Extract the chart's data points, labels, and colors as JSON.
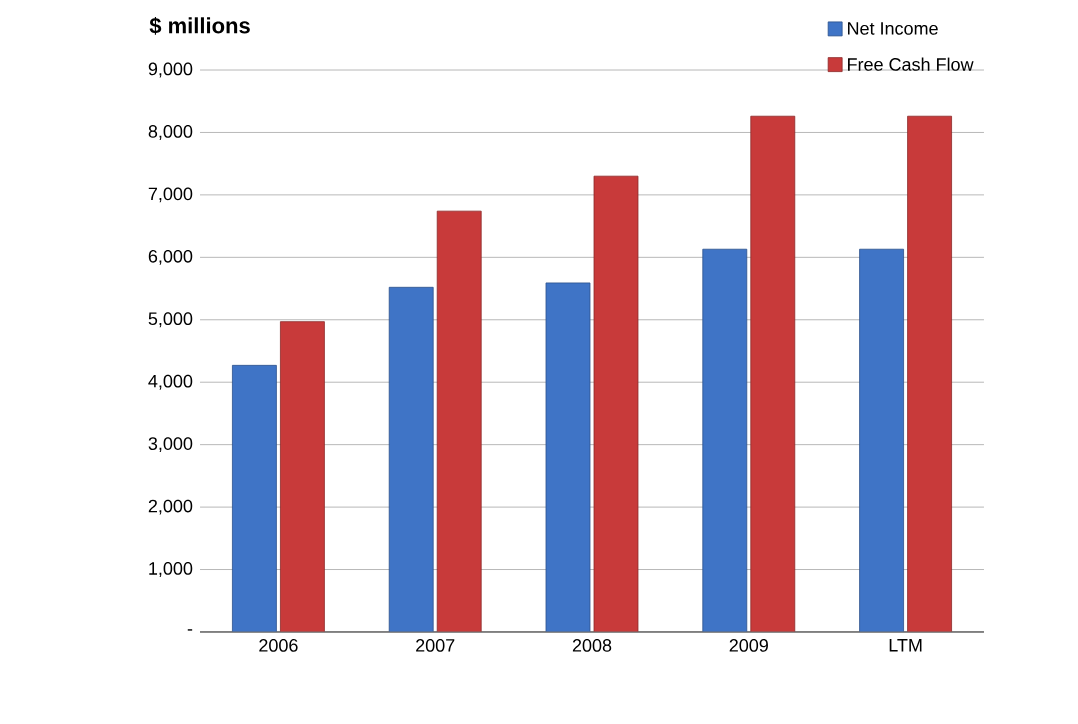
{
  "chart_data": {
    "type": "bar",
    "ylabel": "$ millions",
    "categories": [
      "2006",
      "2007",
      "2008",
      "2009",
      "LTM"
    ],
    "series": [
      {
        "name": "Net Income",
        "color": "#3f74c6",
        "values": [
          4270,
          5520,
          5590,
          6130,
          6130
        ]
      },
      {
        "name": "Free Cash Flow",
        "color": "#c83a3a",
        "values": [
          4970,
          6740,
          7300,
          8260,
          8260
        ]
      }
    ],
    "ylim": [
      0,
      9000
    ],
    "yticks": [
      {
        "value": 0,
        "label": "-"
      },
      {
        "value": 1000,
        "label": "1,000"
      },
      {
        "value": 2000,
        "label": "2,000"
      },
      {
        "value": 3000,
        "label": "3,000"
      },
      {
        "value": 4000,
        "label": "4,000"
      },
      {
        "value": 5000,
        "label": "5,000"
      },
      {
        "value": 6000,
        "label": "6,000"
      },
      {
        "value": 7000,
        "label": "7,000"
      },
      {
        "value": 8000,
        "label": "8,000"
      },
      {
        "value": 9000,
        "label": "9,000"
      }
    ],
    "grid": "y",
    "legend": "top right"
  }
}
